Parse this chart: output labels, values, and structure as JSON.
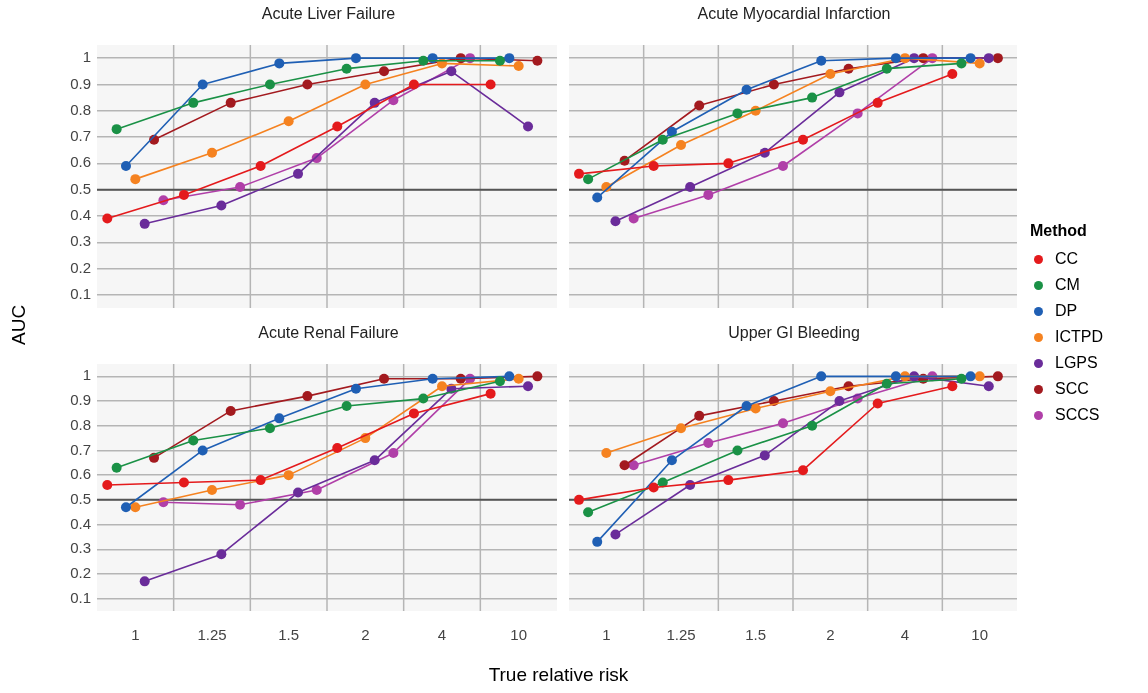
{
  "chart_data": [
    {
      "type": "line",
      "title": "Acute Liver Failure",
      "ylabel": "AUC",
      "categories": [
        "1",
        "1.25",
        "1.5",
        "2",
        "4",
        "10"
      ],
      "ylim": [
        0.05,
        1.05
      ],
      "yticks": [
        0.1,
        0.2,
        0.3,
        0.4,
        0.5,
        0.6,
        0.7,
        0.8,
        0.9,
        1
      ],
      "grid": true,
      "tick_labels": "y",
      "marker": "circle",
      "line_style": "solid",
      "legend": false,
      "ref_lines": [
        {
          "axis": "y",
          "value": 0.5,
          "color": "#555555"
        }
      ],
      "series": [
        {
          "color": "#e41a1c",
          "values": [
            0.39,
            0.48,
            0.59,
            0.74,
            0.9,
            0.9
          ]
        },
        {
          "color": "#1a9146",
          "values": [
            0.73,
            0.83,
            0.9,
            0.96,
            0.99,
            0.99
          ]
        },
        {
          "color": "#1f5fb4",
          "values": [
            0.59,
            0.9,
            0.98,
            1.0,
            1.0,
            1.0
          ]
        },
        {
          "color": "#f58220",
          "values": [
            0.54,
            0.64,
            0.76,
            0.9,
            0.98,
            0.97
          ]
        },
        {
          "color": "#6a2c9a",
          "values": [
            0.37,
            0.44,
            0.56,
            0.83,
            0.95,
            0.74
          ]
        },
        {
          "color": "#a31a1f",
          "values": [
            0.69,
            0.83,
            0.9,
            0.95,
            1.0,
            0.99
          ]
        },
        {
          "color": "#b03fa8",
          "values": [
            0.46,
            0.51,
            0.62,
            0.84,
            1.0,
            null
          ]
        }
      ]
    },
    {
      "type": "line",
      "title": "Acute Myocardial Infarction",
      "categories": [
        "1",
        "1.25",
        "1.5",
        "2",
        "4",
        "10"
      ],
      "ylim": [
        0.05,
        1.05
      ],
      "yticks": [
        0.1,
        0.2,
        0.3,
        0.4,
        0.5,
        0.6,
        0.7,
        0.8,
        0.9,
        1
      ],
      "grid": true,
      "tick_labels": false,
      "marker": "circle",
      "line_style": "solid",
      "legend": "right",
      "legend_title": "Method",
      "ref_lines": [
        {
          "axis": "y",
          "value": 0.5,
          "color": "#555555"
        }
      ],
      "series": [
        {
          "name": "CC",
          "color": "#e41a1c",
          "values": [
            0.56,
            0.59,
            0.6,
            0.69,
            0.83,
            0.94
          ]
        },
        {
          "name": "CM",
          "color": "#1a9146",
          "values": [
            0.54,
            0.69,
            0.79,
            0.85,
            0.96,
            0.98
          ]
        },
        {
          "name": "DP",
          "color": "#1f5fb4",
          "values": [
            0.47,
            0.72,
            0.88,
            0.99,
            1.0,
            1.0
          ]
        },
        {
          "name": "ICTPD",
          "color": "#f58220",
          "values": [
            0.51,
            0.67,
            0.8,
            0.94,
            1.0,
            0.98
          ]
        },
        {
          "name": "LGPS",
          "color": "#6a2c9a",
          "values": [
            0.38,
            0.51,
            0.64,
            0.87,
            1.0,
            1.0
          ]
        },
        {
          "name": "SCC",
          "color": "#a31a1f",
          "values": [
            0.61,
            0.82,
            0.9,
            0.96,
            1.0,
            1.0
          ]
        },
        {
          "name": "SCCS",
          "color": "#b03fa8",
          "values": [
            0.39,
            0.48,
            0.59,
            0.79,
            1.0,
            null
          ]
        }
      ]
    },
    {
      "type": "line",
      "title": "Acute Renal Failure",
      "xlabel": "True relative risk",
      "categories": [
        "1",
        "1.25",
        "1.5",
        "2",
        "4",
        "10"
      ],
      "ylim": [
        0.05,
        1.05
      ],
      "yticks": [
        0.1,
        0.2,
        0.3,
        0.4,
        0.5,
        0.6,
        0.7,
        0.8,
        0.9,
        1
      ],
      "grid": true,
      "marker": "circle",
      "line_style": "solid",
      "legend": false,
      "ref_lines": [
        {
          "axis": "y",
          "value": 0.5,
          "color": "#555555"
        }
      ],
      "series": [
        {
          "color": "#e41a1c",
          "values": [
            0.56,
            0.57,
            0.58,
            0.71,
            0.85,
            0.93
          ]
        },
        {
          "color": "#1a9146",
          "values": [
            0.63,
            0.74,
            0.79,
            0.88,
            0.91,
            0.98
          ]
        },
        {
          "color": "#1f5fb4",
          "values": [
            0.47,
            0.7,
            0.83,
            0.95,
            0.99,
            1.0
          ]
        },
        {
          "color": "#f58220",
          "values": [
            0.47,
            0.54,
            0.6,
            0.75,
            0.96,
            0.99
          ]
        },
        {
          "color": "#6a2c9a",
          "values": [
            0.17,
            0.28,
            0.53,
            0.66,
            0.95,
            0.96
          ]
        },
        {
          "color": "#a31a1f",
          "values": [
            0.67,
            0.86,
            0.92,
            0.99,
            0.99,
            1.0
          ]
        },
        {
          "color": "#b03fa8",
          "values": [
            0.49,
            0.48,
            0.54,
            0.69,
            0.99,
            null
          ]
        }
      ]
    },
    {
      "type": "line",
      "title": "Upper GI Bleeding",
      "categories": [
        "1",
        "1.25",
        "1.5",
        "2",
        "4",
        "10"
      ],
      "ylim": [
        0.05,
        1.05
      ],
      "yticks": [
        0.1,
        0.2,
        0.3,
        0.4,
        0.5,
        0.6,
        0.7,
        0.8,
        0.9,
        1
      ],
      "grid": true,
      "tick_labels": "x",
      "marker": "circle",
      "line_style": "solid",
      "legend": false,
      "ref_lines": [
        {
          "axis": "y",
          "value": 0.5,
          "color": "#555555"
        }
      ],
      "series": [
        {
          "color": "#e41a1c",
          "values": [
            0.5,
            0.55,
            0.58,
            0.62,
            0.89,
            0.96
          ]
        },
        {
          "color": "#1a9146",
          "values": [
            0.45,
            0.57,
            0.7,
            0.8,
            0.97,
            0.99
          ]
        },
        {
          "color": "#1f5fb4",
          "values": [
            0.33,
            0.66,
            0.88,
            1.0,
            1.0,
            1.0
          ]
        },
        {
          "color": "#f58220",
          "values": [
            0.69,
            0.79,
            0.87,
            0.94,
            1.0,
            1.0
          ]
        },
        {
          "color": "#6a2c9a",
          "values": [
            0.36,
            0.56,
            0.68,
            0.9,
            1.0,
            0.96
          ]
        },
        {
          "color": "#a31a1f",
          "values": [
            0.64,
            0.84,
            0.9,
            0.96,
            0.99,
            1.0
          ]
        },
        {
          "color": "#b03fa8",
          "values": [
            0.64,
            0.73,
            0.81,
            0.91,
            1.0,
            null
          ]
        }
      ]
    }
  ]
}
